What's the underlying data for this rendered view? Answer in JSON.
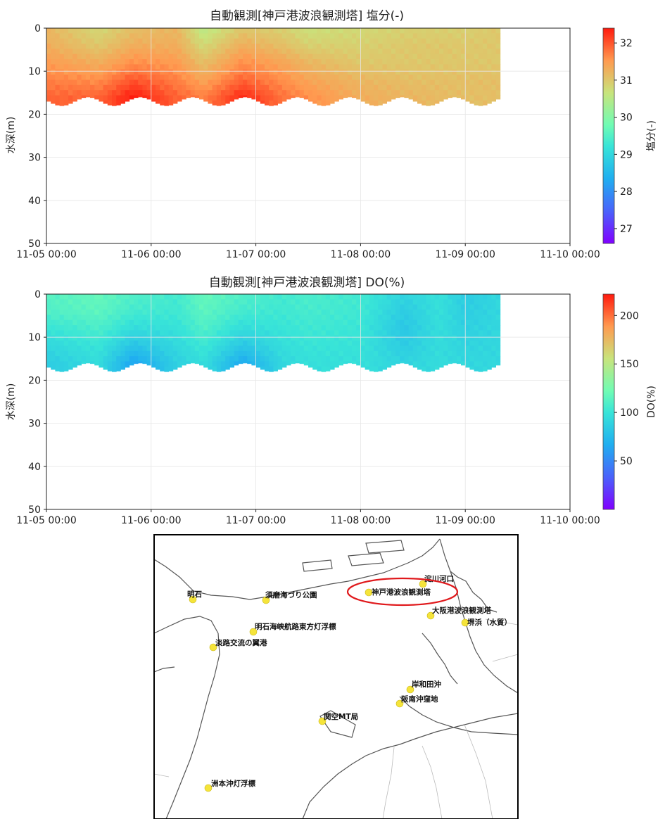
{
  "chart_data": [
    {
      "type": "heatmap",
      "title": "自動観測[神戸港波浪観測塔] 塩分(-)",
      "ylabel": "水深(m)",
      "xlabel": "",
      "x_ticks": [
        "11-05 00:00",
        "11-06 00:00",
        "11-07 00:00",
        "11-08 00:00",
        "11-09 00:00",
        "11-10 00:00"
      ],
      "xlim": [
        "11-05 00:00",
        "11-10 00:00"
      ],
      "data_end": "11-09 08:00",
      "y_ticks": [
        0,
        10,
        20,
        30,
        40,
        50
      ],
      "ylim": [
        50,
        0
      ],
      "y_inverted": true,
      "grid": true,
      "colorbar": {
        "label": "塩分(-)",
        "min": 26.6,
        "max": 32.4,
        "ticks": [
          27,
          28,
          29,
          30,
          31,
          32
        ],
        "colormap": "rainbow"
      },
      "bottom_depth": {
        "mean": 17,
        "amplitude": 1.0,
        "period_days": 0.5
      },
      "profiles": [
        {
          "time": "11-05 00:00",
          "values": [
            31.2,
            31.3,
            31.5,
            31.7,
            31.9
          ]
        },
        {
          "time": "11-05 12:00",
          "values": [
            30.8,
            31.0,
            31.3,
            31.6,
            31.9
          ]
        },
        {
          "time": "11-05 20:00",
          "values": [
            31.1,
            31.3,
            31.6,
            32.0,
            32.4
          ]
        },
        {
          "time": "11-06 06:00",
          "values": [
            31.2,
            31.3,
            31.5,
            31.7,
            31.9
          ]
        },
        {
          "time": "11-06 12:00",
          "values": [
            30.5,
            30.8,
            31.1,
            31.4,
            31.7
          ]
        },
        {
          "time": "11-06 21:00",
          "values": [
            31.0,
            31.3,
            31.6,
            31.9,
            32.3
          ]
        },
        {
          "time": "11-07 06:00",
          "values": [
            30.9,
            31.1,
            31.4,
            31.6,
            31.8
          ]
        },
        {
          "time": "11-07 12:00",
          "values": [
            30.7,
            30.9,
            31.2,
            31.4,
            31.6
          ]
        },
        {
          "time": "11-08 00:00",
          "values": [
            30.8,
            30.9,
            31.0,
            31.2,
            31.3
          ]
        },
        {
          "time": "11-08 12:00",
          "values": [
            30.9,
            31.0,
            31.0,
            31.1,
            31.2
          ]
        },
        {
          "time": "11-09 00:00",
          "values": [
            30.9,
            31.0,
            31.0,
            31.1,
            31.1
          ]
        },
        {
          "time": "11-09 08:00",
          "values": [
            31.0,
            31.0,
            31.0,
            31.1,
            31.1
          ]
        }
      ],
      "profile_depths": [
        0,
        4,
        8,
        12,
        16
      ]
    },
    {
      "type": "heatmap",
      "title": "自動観測[神戸港波浪観測塔] DO(%)",
      "ylabel": "水深(m)",
      "xlabel": "",
      "x_ticks": [
        "11-05 00:00",
        "11-06 00:00",
        "11-07 00:00",
        "11-08 00:00",
        "11-09 00:00",
        "11-10 00:00"
      ],
      "xlim": [
        "11-05 00:00",
        "11-10 00:00"
      ],
      "data_end": "11-09 08:00",
      "y_ticks": [
        0,
        10,
        20,
        30,
        40,
        50
      ],
      "ylim": [
        50,
        0
      ],
      "y_inverted": true,
      "grid": true,
      "colorbar": {
        "label": "DO(%)",
        "min": 0,
        "max": 222,
        "ticks": [
          50,
          100,
          150,
          200
        ],
        "colormap": "rainbow"
      },
      "bottom_depth": {
        "mean": 17,
        "amplitude": 1.0,
        "period_days": 0.5
      },
      "profiles": [
        {
          "time": "11-05 00:00",
          "values": [
            112,
            110,
            100,
            92,
            85
          ]
        },
        {
          "time": "11-05 12:00",
          "values": [
            118,
            115,
            108,
            100,
            95
          ]
        },
        {
          "time": "11-05 20:00",
          "values": [
            110,
            105,
            95,
            80,
            62
          ]
        },
        {
          "time": "11-06 06:00",
          "values": [
            105,
            103,
            98,
            93,
            88
          ]
        },
        {
          "time": "11-06 12:00",
          "values": [
            118,
            115,
            110,
            102,
            96
          ]
        },
        {
          "time": "11-06 21:00",
          "values": [
            110,
            105,
            95,
            82,
            65
          ]
        },
        {
          "time": "11-07 06:00",
          "values": [
            105,
            103,
            100,
            96,
            92
          ]
        },
        {
          "time": "11-07 12:00",
          "values": [
            108,
            106,
            103,
            100,
            97
          ]
        },
        {
          "time": "11-08 00:00",
          "values": [
            104,
            103,
            101,
            99,
            97
          ]
        },
        {
          "time": "11-08 10:00",
          "values": [
            90,
            85,
            82,
            85,
            90
          ]
        },
        {
          "time": "11-08 18:00",
          "values": [
            98,
            97,
            96,
            95,
            95
          ]
        },
        {
          "time": "11-09 00:00",
          "values": [
            85,
            86,
            88,
            90,
            92
          ]
        },
        {
          "time": "11-09 08:00",
          "values": [
            92,
            92,
            92,
            92,
            92
          ]
        }
      ],
      "profile_depths": [
        0,
        4,
        8,
        12,
        16
      ]
    }
  ],
  "map": {
    "stations": [
      {
        "name": "明石",
        "highlighted": false
      },
      {
        "name": "須磨海づり公園",
        "highlighted": false
      },
      {
        "name": "神戸港波浪観測塔",
        "highlighted": true
      },
      {
        "name": "淀川河口",
        "highlighted": false
      },
      {
        "name": "大阪港波浪観測塔",
        "highlighted": false
      },
      {
        "name": "堺浜（水質）",
        "highlighted": false
      },
      {
        "name": "明石海峡航路東方灯浮標",
        "highlighted": false
      },
      {
        "name": "淡路交流の翼港",
        "highlighted": false
      },
      {
        "name": "岸和田沖",
        "highlighted": false
      },
      {
        "name": "阪南沖窪地",
        "highlighted": false
      },
      {
        "name": "関空MT局",
        "highlighted": false
      },
      {
        "name": "洲本沖灯浮標",
        "highlighted": false
      }
    ],
    "colors": {
      "station_marker": "#f5e43a",
      "highlight_ellipse": "#e0191c",
      "coast": "#555555",
      "frame": "#000000"
    }
  }
}
